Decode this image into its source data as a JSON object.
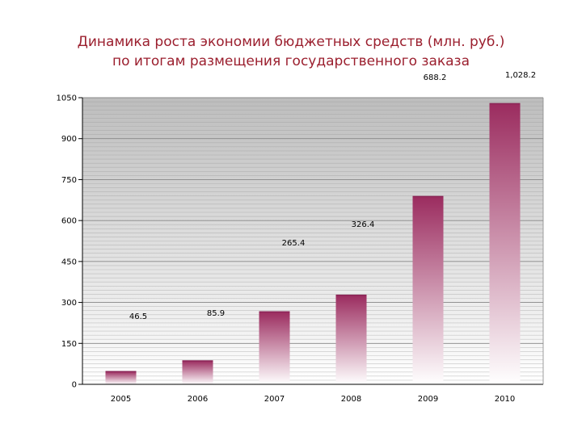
{
  "title": {
    "line1": "Динамика роста экономии бюджетных средств (млн. руб.)",
    "line2": "по итогам размещения государственного заказа"
  },
  "colors": {
    "bar_top": "#9b2c5f",
    "bar_bottom": "#ffffff",
    "plot_bg_top": "#bdbdbd",
    "plot_bg_bottom": "#ffffff",
    "grid": "#9a9a9a"
  },
  "chart_data": {
    "type": "bar",
    "categories": [
      "2005",
      "2006",
      "2007",
      "2008",
      "2009",
      "2010"
    ],
    "values": [
      46.5,
      85.9,
      265.4,
      326.4,
      688.2,
      1028.2
    ],
    "data_labels": [
      "46.5",
      "85.9",
      "265.4",
      "326.4",
      "688.2",
      "1,028.2"
    ],
    "y_ticks": [
      "0",
      "150",
      "300",
      "450",
      "600",
      "750",
      "900",
      "1050"
    ],
    "ylim": [
      0,
      1050
    ],
    "xlabel": "",
    "ylabel": "",
    "grid": true,
    "legend": "none"
  }
}
